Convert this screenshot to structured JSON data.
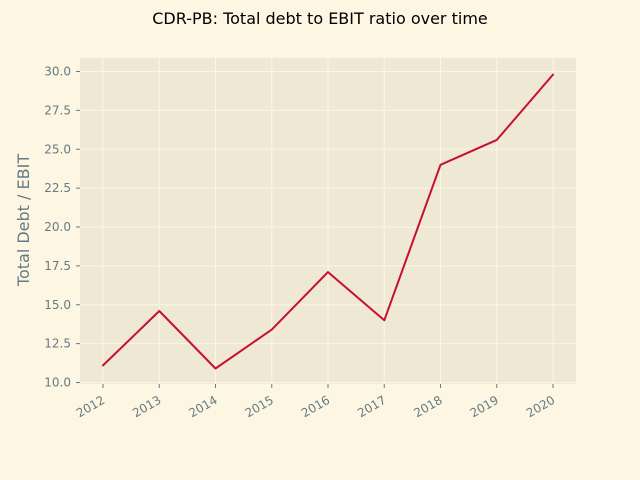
{
  "colors": {
    "figure_bg": "#fdf6e3",
    "plot_bg": "#eee8d5",
    "grid": "#fdf6e3",
    "tick_text": "#657b83",
    "line": "#c8102e"
  },
  "chart_data": {
    "type": "line",
    "title": "CDR-PB: Total debt to EBIT ratio over time",
    "xlabel": "",
    "ylabel": "Total Debt / EBIT",
    "categories": [
      "2012",
      "2013",
      "2014",
      "2015",
      "2016",
      "2017",
      "2018",
      "2019",
      "2020"
    ],
    "series": [
      {
        "values": [
          11.1,
          14.6,
          10.9,
          13.4,
          17.1,
          14.0,
          24.0,
          25.6,
          29.8
        ]
      }
    ],
    "yticks": [
      "10.0",
      "12.5",
      "15.0",
      "17.5",
      "20.0",
      "22.5",
      "25.0",
      "27.5",
      "30.0"
    ],
    "ylim": [
      10.0,
      30.0
    ],
    "grid": true,
    "legend": "none"
  }
}
